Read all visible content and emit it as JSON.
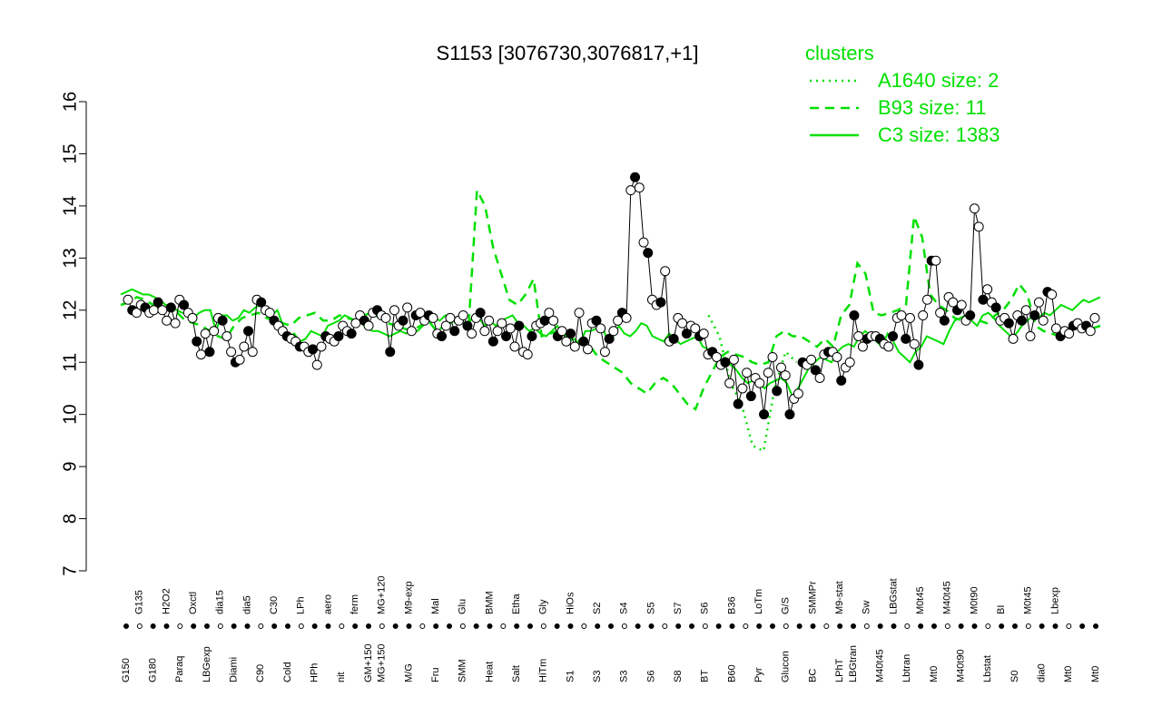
{
  "chart_data": {
    "type": "line",
    "title": "S1153 [3076730,3076817,+1]",
    "xlabel": "",
    "ylabel": "",
    "ylim": [
      7,
      16
    ],
    "yticks": [
      7,
      8,
      9,
      10,
      11,
      12,
      13,
      14,
      15,
      16
    ],
    "colors": {
      "line": "#00e000",
      "points_open": "#ffffff",
      "points_filled": "#000000"
    },
    "legend": {
      "position": "top-right",
      "title": "clusters",
      "entries": [
        {
          "label": "A1640 size: 2",
          "style": "dotted"
        },
        {
          "label": "B93 size: 11",
          "style": "dashed"
        },
        {
          "label": "C3 size: 1383",
          "style": "solid"
        }
      ]
    },
    "x_labels_top": [
      "G135",
      "H2O2",
      "Oxctl",
      "dia15",
      "dia5",
      "C30",
      "LPh",
      "aero",
      "ferm",
      "MG+120",
      "M9-exp",
      "Mal",
      "Glu",
      "BMM",
      "Etha",
      "Gly",
      "HiOs",
      "S2",
      "S4",
      "S5",
      "S7",
      "S6",
      "B36",
      "LoTm",
      "G/S",
      "SMMPr",
      "M9-stat",
      "Sw",
      "LBGstat",
      "M0t45",
      "M40t45",
      "M0t90",
      "BI",
      "M0t45",
      "Lbexp"
    ],
    "x_labels_bottom": [
      "G150",
      "G180",
      "Paraq",
      "LBGexp",
      "Diami",
      "C90",
      "Cold",
      "HPh",
      "nit",
      "GM+150",
      "MG+150",
      "M/G",
      "Fru",
      "SMM",
      "Heat",
      "Salt",
      "HiTm",
      "S1",
      "S3",
      "S3",
      "S6",
      "S8",
      "BT",
      "B60",
      "Pyr",
      "Glucon",
      "BC",
      "LPhT",
      "LBGtran",
      "M40t45",
      "Lbtran",
      "Mt0",
      "M40t90",
      "Lbstat",
      "S0",
      "dia0",
      "Mt0",
      "Mt0"
    ],
    "point_series": [
      12.2,
      12.0,
      11.95,
      12.1,
      12.05,
      11.95,
      12.0,
      12.15,
      12.0,
      11.8,
      12.05,
      11.75,
      12.2,
      12.1,
      11.95,
      11.85,
      11.4,
      11.15,
      11.55,
      11.2,
      11.6,
      11.85,
      11.8,
      11.5,
      11.2,
      11.0,
      11.05,
      11.3,
      11.6,
      11.2,
      12.2,
      12.15,
      12.0,
      11.95,
      11.8,
      11.7,
      11.6,
      11.5,
      11.45,
      11.4,
      11.3,
      11.3,
      11.2,
      11.25,
      10.95,
      11.3,
      11.5,
      11.45,
      11.4,
      11.5,
      11.7,
      11.6,
      11.55,
      11.75,
      11.9,
      11.8,
      11.7,
      11.95,
      12.0,
      11.9,
      11.85,
      11.2,
      12.0,
      11.7,
      11.8,
      12.05,
      11.6,
      11.9,
      11.95,
      11.8,
      11.9,
      11.85,
      11.55,
      11.5,
      11.7,
      11.85,
      11.6,
      11.8,
      11.9,
      11.7,
      11.55,
      11.85,
      11.95,
      11.6,
      11.8,
      11.4,
      11.6,
      11.75,
      11.5,
      11.65,
      11.3,
      11.7,
      11.2,
      11.15,
      11.5,
      11.7,
      11.75,
      11.8,
      11.95,
      11.8,
      11.5,
      11.6,
      11.4,
      11.55,
      11.3,
      11.95,
      11.4,
      11.25,
      11.75,
      11.8,
      11.65,
      11.2,
      11.45,
      11.6,
      11.8,
      11.95,
      11.85,
      14.3,
      14.55,
      14.35,
      13.3,
      13.1,
      12.2,
      12.1,
      12.15,
      12.75,
      11.4,
      11.45,
      11.85,
      11.75,
      11.55,
      11.7,
      11.65,
      11.5,
      11.55,
      11.15,
      11.2,
      11.1,
      10.95,
      11.0,
      10.6,
      11.05,
      10.2,
      10.5,
      10.8,
      10.35,
      10.7,
      10.6,
      10.0,
      10.8,
      11.1,
      10.45,
      10.9,
      10.75,
      10.0,
      10.3,
      10.4,
      11.0,
      10.95,
      11.05,
      10.85,
      10.7,
      11.15,
      11.2,
      11.2,
      11.1,
      10.65,
      10.9,
      11.0,
      11.9,
      11.5,
      11.3,
      11.45,
      11.5,
      11.5,
      11.45,
      11.35,
      11.3,
      11.5,
      11.85,
      11.9,
      11.45,
      11.85,
      11.35,
      10.95,
      11.9,
      12.2,
      12.95,
      12.95,
      11.95,
      11.8,
      12.25,
      12.15,
      12.0,
      12.1,
      11.8,
      11.9,
      13.95,
      13.6,
      12.2,
      12.4,
      12.15,
      12.05,
      11.8,
      11.85,
      11.75,
      11.45,
      11.9,
      11.8,
      12.0,
      11.5,
      11.9,
      12.15,
      11.8,
      12.35,
      12.3,
      11.65,
      11.5,
      11.6,
      11.55,
      11.7,
      11.75,
      11.65,
      11.7,
      11.6,
      11.85
    ],
    "series": [
      {
        "name": "C3 size: 1383",
        "style": "solid",
        "values": [
          12.3,
          12.35,
          12.4,
          12.35,
          12.3,
          12.3,
          12.25,
          12.2,
          12.1,
          12.1,
          12.0,
          11.95,
          11.9,
          11.85,
          11.95,
          12.0,
          12.0,
          11.6,
          11.9,
          11.9,
          11.8,
          11.85,
          12.0,
          11.95,
          12.05,
          12.1,
          12.0,
          11.9,
          12.0,
          11.7,
          11.5,
          11.55,
          11.4,
          11.45,
          11.6,
          11.55,
          11.5,
          11.7,
          11.75,
          11.8,
          11.9,
          11.85,
          11.8,
          11.75,
          11.65,
          11.6,
          11.6,
          11.55,
          11.5,
          11.55,
          11.6,
          11.55,
          11.65,
          11.6,
          11.7,
          11.8,
          11.85,
          11.8,
          11.9,
          11.75,
          11.85,
          11.8,
          11.7,
          11.9,
          11.85,
          11.7,
          11.8,
          11.7,
          11.8,
          11.85,
          11.9,
          11.75,
          11.7,
          11.6,
          11.65,
          11.55,
          11.5,
          11.6,
          11.7,
          11.55,
          11.4,
          11.45,
          11.35,
          11.6,
          11.6,
          11.65,
          11.7,
          11.4,
          11.5,
          11.7,
          11.55,
          11.5,
          11.6,
          11.75,
          11.7,
          11.5,
          11.45,
          11.4,
          11.55,
          11.45,
          11.35,
          11.4,
          11.45,
          11.5,
          11.3,
          11.25,
          11.15,
          11.1,
          11.0,
          10.95,
          10.85,
          10.7,
          10.6,
          10.65,
          10.6,
          10.5,
          10.6,
          10.65,
          10.7,
          10.6,
          10.35,
          10.5,
          10.7,
          10.9,
          11.0,
          11.1,
          11.05,
          11.0,
          11.2,
          11.3,
          11.35,
          11.3,
          11.5,
          11.6,
          11.5,
          11.4,
          11.3,
          11.55,
          11.4,
          11.2,
          11.1,
          11.0,
          11.2,
          11.3,
          11.5,
          11.45,
          11.4,
          11.35,
          11.6,
          11.8,
          11.85,
          11.9,
          11.8,
          11.7,
          11.9,
          11.95,
          11.85,
          11.7,
          11.6,
          11.5,
          11.55,
          11.7,
          11.8,
          11.9,
          11.85,
          11.95,
          11.9,
          12.0,
          12.1,
          12.05,
          12.0,
          12.1,
          12.2,
          12.15,
          12.2,
          12.25
        ]
      },
      {
        "name": "B93 size: 11",
        "style": "dashed",
        "values": [
          12.1,
          12.15,
          12.25,
          12.2,
          12.1,
          12.05,
          12.0,
          11.95,
          11.8,
          11.75,
          11.7,
          11.6,
          11.5,
          11.45,
          11.7,
          11.85,
          11.9,
          11.95,
          11.85,
          11.8,
          11.75,
          11.7,
          11.85,
          11.9,
          11.95,
          11.8,
          11.8,
          11.9,
          11.85,
          11.8,
          11.9,
          11.95,
          11.85,
          11.75,
          11.7,
          11.65,
          11.6,
          11.7,
          11.8,
          11.6,
          11.7,
          11.75,
          11.8,
          11.75,
          14.3,
          14.0,
          13.2,
          12.7,
          12.2,
          12.1,
          12.3,
          12.6,
          11.5,
          11.55,
          11.6,
          11.5,
          11.45,
          11.4,
          11.3,
          11.1,
          11.0,
          10.9,
          10.8,
          10.6,
          10.5,
          10.4,
          10.6,
          10.7,
          10.6,
          10.4,
          10.2,
          10.1,
          10.5,
          10.8,
          11.1,
          11.2,
          11.15,
          11.1,
          11.0,
          10.95,
          11.0,
          11.5,
          11.6,
          11.5,
          11.5,
          11.4,
          11.3,
          11.45,
          11.3,
          11.9,
          12.1,
          12.9,
          12.7,
          11.95,
          11.9,
          11.95,
          12.0,
          12.1,
          13.8,
          13.4,
          12.3,
          12.1,
          12.0,
          11.85,
          11.8,
          11.9,
          11.8,
          11.75,
          11.9,
          12.0,
          12.2,
          12.5,
          12.3,
          11.7,
          11.6,
          11.55,
          11.5,
          11.65,
          11.7,
          11.6,
          11.65,
          11.7
        ]
      },
      {
        "name": "A1640 size: 2",
        "style": "dotted",
        "values": [
          11.9,
          11.5,
          10.6,
          10.2,
          9.4,
          9.3,
          10.5,
          11.2,
          11.0
        ]
      }
    ]
  }
}
